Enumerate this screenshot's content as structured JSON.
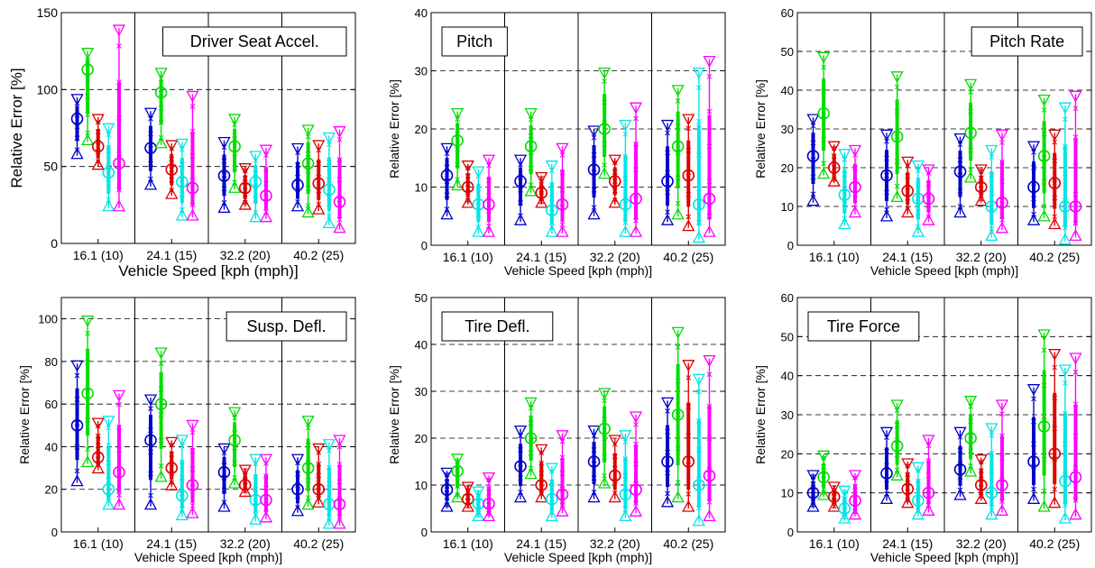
{
  "colors": {
    "series_1": "#0000cc",
    "series_2": "#00dd00",
    "series_3": "#dd0000",
    "series_4": "#00e5e5",
    "series_5": "#ff00ff"
  },
  "chart_data": [
    {
      "type": "errorbar",
      "title": "Driver Seat Accel.",
      "legend_position": "top-right",
      "xlabel": "Vehicle Speed [kph (mph)]",
      "ylabel": "Relative Error [%]",
      "categories": [
        "16.1 (10)",
        "24.1 (15)",
        "32.2 (20)",
        "40.2 (25)"
      ],
      "ylim": [
        0,
        150
      ],
      "yticks": [
        0,
        50,
        100,
        150
      ],
      "grid_y": [
        50,
        100
      ],
      "series": [
        {
          "values": [
            {
              "min": 57,
              "mean": 81,
              "max": 95
            },
            {
              "min": 37,
              "mean": 62,
              "max": 86
            },
            {
              "min": 22,
              "mean": 44,
              "max": 67
            },
            {
              "min": 23,
              "mean": 38,
              "max": 63
            }
          ]
        },
        {
          "values": [
            {
              "min": 66,
              "mean": 113,
              "max": 125
            },
            {
              "min": 64,
              "mean": 98,
              "max": 112
            },
            {
              "min": 35,
              "mean": 63,
              "max": 82
            },
            {
              "min": 19,
              "mean": 52,
              "max": 75
            }
          ]
        },
        {
          "values": [
            {
              "min": 50,
              "mean": 63,
              "max": 82
            },
            {
              "min": 31,
              "mean": 48,
              "max": 65
            },
            {
              "min": 24,
              "mean": 36,
              "max": 50
            },
            {
              "min": 21,
              "mean": 39,
              "max": 65
            }
          ]
        },
        {
          "values": [
            {
              "min": 23,
              "mean": 46,
              "max": 76
            },
            {
              "min": 17,
              "mean": 40,
              "max": 66
            },
            {
              "min": 16,
              "mean": 40,
              "max": 58
            },
            {
              "min": 12,
              "mean": 35,
              "max": 70
            }
          ]
        },
        {
          "values": [
            {
              "min": 23,
              "mean": 52,
              "max": 140
            },
            {
              "min": 17,
              "mean": 36,
              "max": 97
            },
            {
              "min": 16,
              "mean": 31,
              "max": 62
            },
            {
              "min": 9,
              "mean": 27,
              "max": 74
            }
          ]
        }
      ]
    },
    {
      "type": "errorbar",
      "title": "Pitch",
      "legend_position": "top-left",
      "xlabel": "Vehicle Speed [kph (mph)]",
      "ylabel": "Relative Error [%]",
      "categories": [
        "16.1 (10)",
        "24.1 (15)",
        "32.2 (20)",
        "40.2 (25)"
      ],
      "ylim": [
        0,
        40
      ],
      "yticks": [
        0,
        10,
        20,
        30,
        40
      ],
      "grid_y": [
        10,
        20,
        30
      ],
      "series": [
        {
          "values": [
            {
              "min": 5,
              "mean": 12,
              "max": 17
            },
            {
              "min": 4,
              "mean": 11,
              "max": 15
            },
            {
              "min": 5,
              "mean": 13,
              "max": 20
            },
            {
              "min": 4,
              "mean": 11,
              "max": 21
            }
          ]
        },
        {
          "values": [
            {
              "min": 10,
              "mean": 18,
              "max": 23
            },
            {
              "min": 9,
              "mean": 17,
              "max": 23
            },
            {
              "min": 12,
              "mean": 20,
              "max": 30
            },
            {
              "min": 5,
              "mean": 17,
              "max": 27
            }
          ]
        },
        {
          "values": [
            {
              "min": 7,
              "mean": 10,
              "max": 14
            },
            {
              "min": 7,
              "mean": 9,
              "max": 12
            },
            {
              "min": 7,
              "mean": 11,
              "max": 15
            },
            {
              "min": 3,
              "mean": 12,
              "max": 22
            }
          ]
        },
        {
          "values": [
            {
              "min": 2,
              "mean": 7,
              "max": 13
            },
            {
              "min": 2,
              "mean": 6,
              "max": 14
            },
            {
              "min": 2,
              "mean": 7,
              "max": 21
            },
            {
              "min": 1,
              "mean": 7,
              "max": 30
            }
          ]
        },
        {
          "values": [
            {
              "min": 2,
              "mean": 7,
              "max": 15
            },
            {
              "min": 2,
              "mean": 7,
              "max": 17
            },
            {
              "min": 2,
              "mean": 8,
              "max": 24
            },
            {
              "min": 2,
              "mean": 8,
              "max": 32
            }
          ]
        }
      ]
    },
    {
      "type": "errorbar",
      "title": "Pitch Rate",
      "legend_position": "top-right",
      "xlabel": "Vehicle Speed [kph (mph)]",
      "ylabel": "Relative Error [%]",
      "categories": [
        "16.1 (10)",
        "24.1 (15)",
        "32.2 (20)",
        "40.2 (25)"
      ],
      "ylim": [
        0,
        60
      ],
      "yticks": [
        0,
        10,
        20,
        30,
        40,
        50,
        60
      ],
      "grid_y": [
        10,
        20,
        30,
        40,
        50
      ],
      "series": [
        {
          "values": [
            {
              "min": 11,
              "mean": 23,
              "max": 33
            },
            {
              "min": 7,
              "mean": 18,
              "max": 29
            },
            {
              "min": 8,
              "mean": 19,
              "max": 28
            },
            {
              "min": 6,
              "mean": 15,
              "max": 26
            }
          ]
        },
        {
          "values": [
            {
              "min": 18,
              "mean": 34,
              "max": 49
            },
            {
              "min": 12,
              "mean": 28,
              "max": 44
            },
            {
              "min": 17,
              "mean": 29,
              "max": 42
            },
            {
              "min": 7,
              "mean": 23,
              "max": 38
            }
          ]
        },
        {
          "values": [
            {
              "min": 16,
              "mean": 20,
              "max": 26
            },
            {
              "min": 8,
              "mean": 14,
              "max": 22
            },
            {
              "min": 11,
              "mean": 15,
              "max": 20
            },
            {
              "min": 5,
              "mean": 16,
              "max": 29
            }
          ]
        },
        {
          "values": [
            {
              "min": 5,
              "mean": 13,
              "max": 24
            },
            {
              "min": 3,
              "mean": 12,
              "max": 21
            },
            {
              "min": 2,
              "mean": 10,
              "max": 25
            },
            {
              "min": 1,
              "mean": 10,
              "max": 36
            }
          ]
        },
        {
          "values": [
            {
              "min": 8,
              "mean": 15,
              "max": 25
            },
            {
              "min": 6,
              "mean": 12,
              "max": 20
            },
            {
              "min": 4,
              "mean": 11,
              "max": 29
            },
            {
              "min": 2,
              "mean": 10,
              "max": 39
            }
          ]
        }
      ]
    },
    {
      "type": "errorbar",
      "title": "Susp. Defl.",
      "legend_position": "top-right",
      "xlabel": "Vehicle Speed [kph (mph)]",
      "ylabel": "Relative Error [%]",
      "categories": [
        "16.1 (10)",
        "24.1 (15)",
        "32.2 (20)",
        "40.2 (25)"
      ],
      "ylim": [
        0,
        110
      ],
      "yticks": [
        0,
        20,
        40,
        60,
        80,
        100
      ],
      "grid_y": [
        20,
        40,
        60,
        80,
        100
      ],
      "series": [
        {
          "values": [
            {
              "min": 23,
              "mean": 50,
              "max": 79
            },
            {
              "min": 12,
              "mean": 43,
              "max": 63
            },
            {
              "min": 11,
              "mean": 28,
              "max": 40
            },
            {
              "min": 9,
              "mean": 20,
              "max": 35
            }
          ]
        },
        {
          "values": [
            {
              "min": 32,
              "mean": 65,
              "max": 100
            },
            {
              "min": 25,
              "mean": 60,
              "max": 85
            },
            {
              "min": 22,
              "mean": 43,
              "max": 57
            },
            {
              "min": 12,
              "mean": 30,
              "max": 53
            }
          ]
        },
        {
          "values": [
            {
              "min": 29,
              "mean": 35,
              "max": 52
            },
            {
              "min": 21,
              "mean": 30,
              "max": 43
            },
            {
              "min": 18,
              "mean": 22,
              "max": 30
            },
            {
              "min": 13,
              "mean": 20,
              "max": 40
            }
          ]
        },
        {
          "values": [
            {
              "min": 12,
              "mean": 20,
              "max": 53
            },
            {
              "min": 7,
              "mean": 17,
              "max": 44
            },
            {
              "min": 5,
              "mean": 15,
              "max": 35
            },
            {
              "min": 3,
              "mean": 13,
              "max": 42
            }
          ]
        },
        {
          "values": [
            {
              "min": 12,
              "mean": 28,
              "max": 65
            },
            {
              "min": 8,
              "mean": 22,
              "max": 51
            },
            {
              "min": 6,
              "mean": 15,
              "max": 35
            },
            {
              "min": 3,
              "mean": 13,
              "max": 44
            }
          ]
        }
      ]
    },
    {
      "type": "errorbar",
      "title": "Tire Defl.",
      "legend_position": "top-left",
      "xlabel": "Vehicle Speed [kph (mph)]",
      "ylabel": "Relative Error [%]",
      "categories": [
        "16.1 (10)",
        "24.1 (15)",
        "32.2 (20)",
        "40.2 (25)"
      ],
      "ylim": [
        0,
        50
      ],
      "yticks": [
        0,
        10,
        20,
        30,
        40,
        50
      ],
      "grid_y": [
        10,
        20,
        30,
        40
      ],
      "series": [
        {
          "values": [
            {
              "min": 5,
              "mean": 9,
              "max": 13
            },
            {
              "min": 7,
              "mean": 14,
              "max": 22
            },
            {
              "min": 7,
              "mean": 15,
              "max": 22
            },
            {
              "min": 6,
              "mean": 15,
              "max": 28
            }
          ]
        },
        {
          "values": [
            {
              "min": 7,
              "mean": 13,
              "max": 16
            },
            {
              "min": 12,
              "mean": 20,
              "max": 28
            },
            {
              "min": 10,
              "mean": 22,
              "max": 30
            },
            {
              "min": 7,
              "mean": 25,
              "max": 43
            }
          ]
        },
        {
          "values": [
            {
              "min": 5,
              "mean": 7,
              "max": 10
            },
            {
              "min": 7,
              "mean": 10,
              "max": 18
            },
            {
              "min": 7,
              "mean": 12,
              "max": 20
            },
            {
              "min": 5,
              "mean": 15,
              "max": 36
            }
          ]
        },
        {
          "values": [
            {
              "min": 3,
              "mean": 6,
              "max": 9
            },
            {
              "min": 3,
              "mean": 7,
              "max": 14
            },
            {
              "min": 3,
              "mean": 8,
              "max": 21
            },
            {
              "min": 2,
              "mean": 10,
              "max": 33
            }
          ]
        },
        {
          "values": [
            {
              "min": 3,
              "mean": 6,
              "max": 12
            },
            {
              "min": 4,
              "mean": 8,
              "max": 21
            },
            {
              "min": 4,
              "mean": 9,
              "max": 25
            },
            {
              "min": 3,
              "mean": 12,
              "max": 37
            }
          ]
        }
      ]
    },
    {
      "type": "errorbar",
      "title": "Tire Force",
      "legend_position": "top-left",
      "xlabel": "Vehicle Speed [kph (mph)]",
      "ylabel": "Relative Error [%]",
      "categories": [
        "16.1 (10)",
        "24.1 (15)",
        "32.2 (20)",
        "40.2 (25)"
      ],
      "ylim": [
        0,
        60
      ],
      "yticks": [
        0,
        10,
        20,
        30,
        40,
        50,
        60
      ],
      "grid_y": [
        10,
        20,
        30,
        40,
        50
      ],
      "series": [
        {
          "values": [
            {
              "min": 6,
              "mean": 10,
              "max": 15
            },
            {
              "min": 8,
              "mean": 15,
              "max": 26
            },
            {
              "min": 9,
              "mean": 16,
              "max": 26
            },
            {
              "min": 8,
              "mean": 18,
              "max": 37
            }
          ]
        },
        {
          "values": [
            {
              "min": 9,
              "mean": 14,
              "max": 20
            },
            {
              "min": 14,
              "mean": 22,
              "max": 33
            },
            {
              "min": 15,
              "mean": 24,
              "max": 34
            },
            {
              "min": 6,
              "mean": 27,
              "max": 51
            }
          ]
        },
        {
          "values": [
            {
              "min": 6,
              "mean": 9,
              "max": 12
            },
            {
              "min": 7,
              "mean": 11,
              "max": 18
            },
            {
              "min": 8,
              "mean": 12,
              "max": 19
            },
            {
              "min": 7,
              "mean": 20,
              "max": 46
            }
          ]
        },
        {
          "values": [
            {
              "min": 3,
              "mean": 6,
              "max": 11
            },
            {
              "min": 4,
              "mean": 8,
              "max": 17
            },
            {
              "min": 4,
              "mean": 10,
              "max": 27
            },
            {
              "min": 3,
              "mean": 13,
              "max": 42
            }
          ]
        },
        {
          "values": [
            {
              "min": 4,
              "mean": 8,
              "max": 15
            },
            {
              "min": 5,
              "mean": 10,
              "max": 24
            },
            {
              "min": 5,
              "mean": 12,
              "max": 33
            },
            {
              "min": 4,
              "mean": 14,
              "max": 45
            }
          ]
        }
      ]
    }
  ]
}
